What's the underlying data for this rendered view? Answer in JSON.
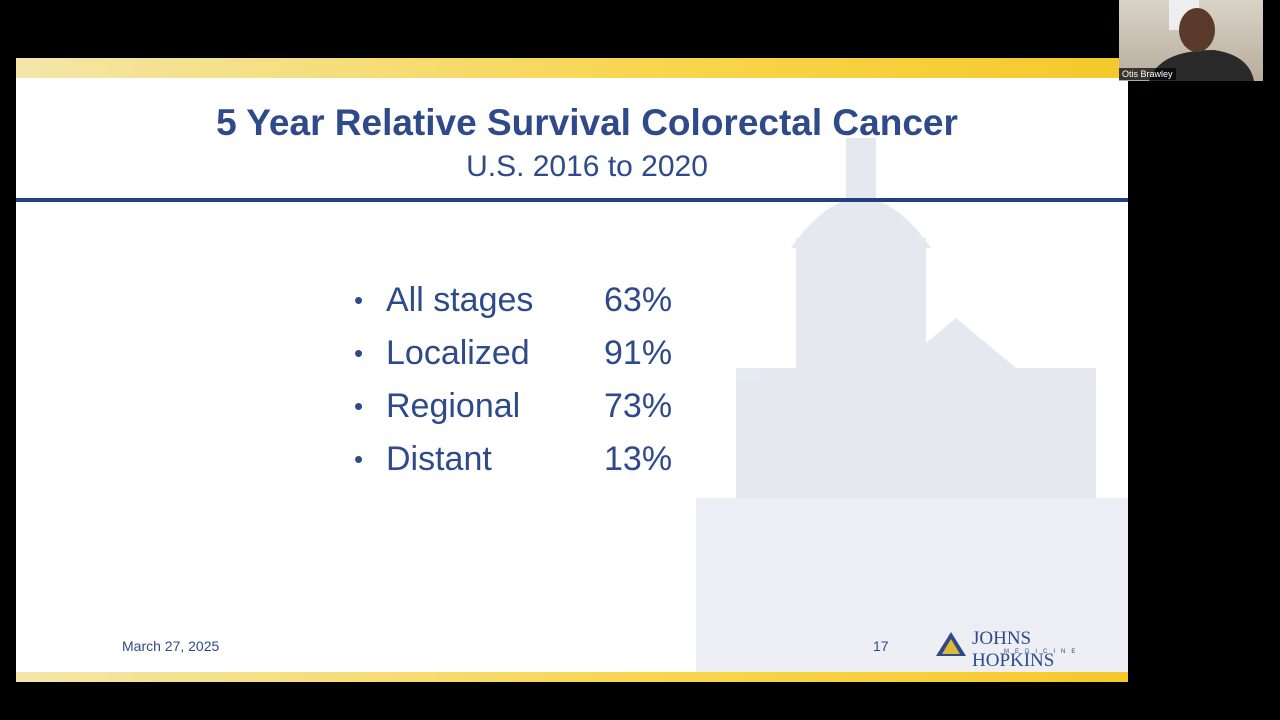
{
  "slide": {
    "title": "5 Year Relative Survival Colorectal Cancer",
    "subtitle": "U.S. 2016 to 2020",
    "items": [
      {
        "label": "All stages",
        "value": "63%"
      },
      {
        "label": "Localized",
        "value": "91%"
      },
      {
        "label": "Regional",
        "value": "73%"
      },
      {
        "label": "Distant",
        "value": "13%"
      }
    ],
    "date": "March 27, 2025",
    "page_number": "17",
    "logo": {
      "name": "JOHNS HOPKINS",
      "sub": "MEDICINE"
    }
  },
  "participant": {
    "name": "Otis Brawley"
  }
}
